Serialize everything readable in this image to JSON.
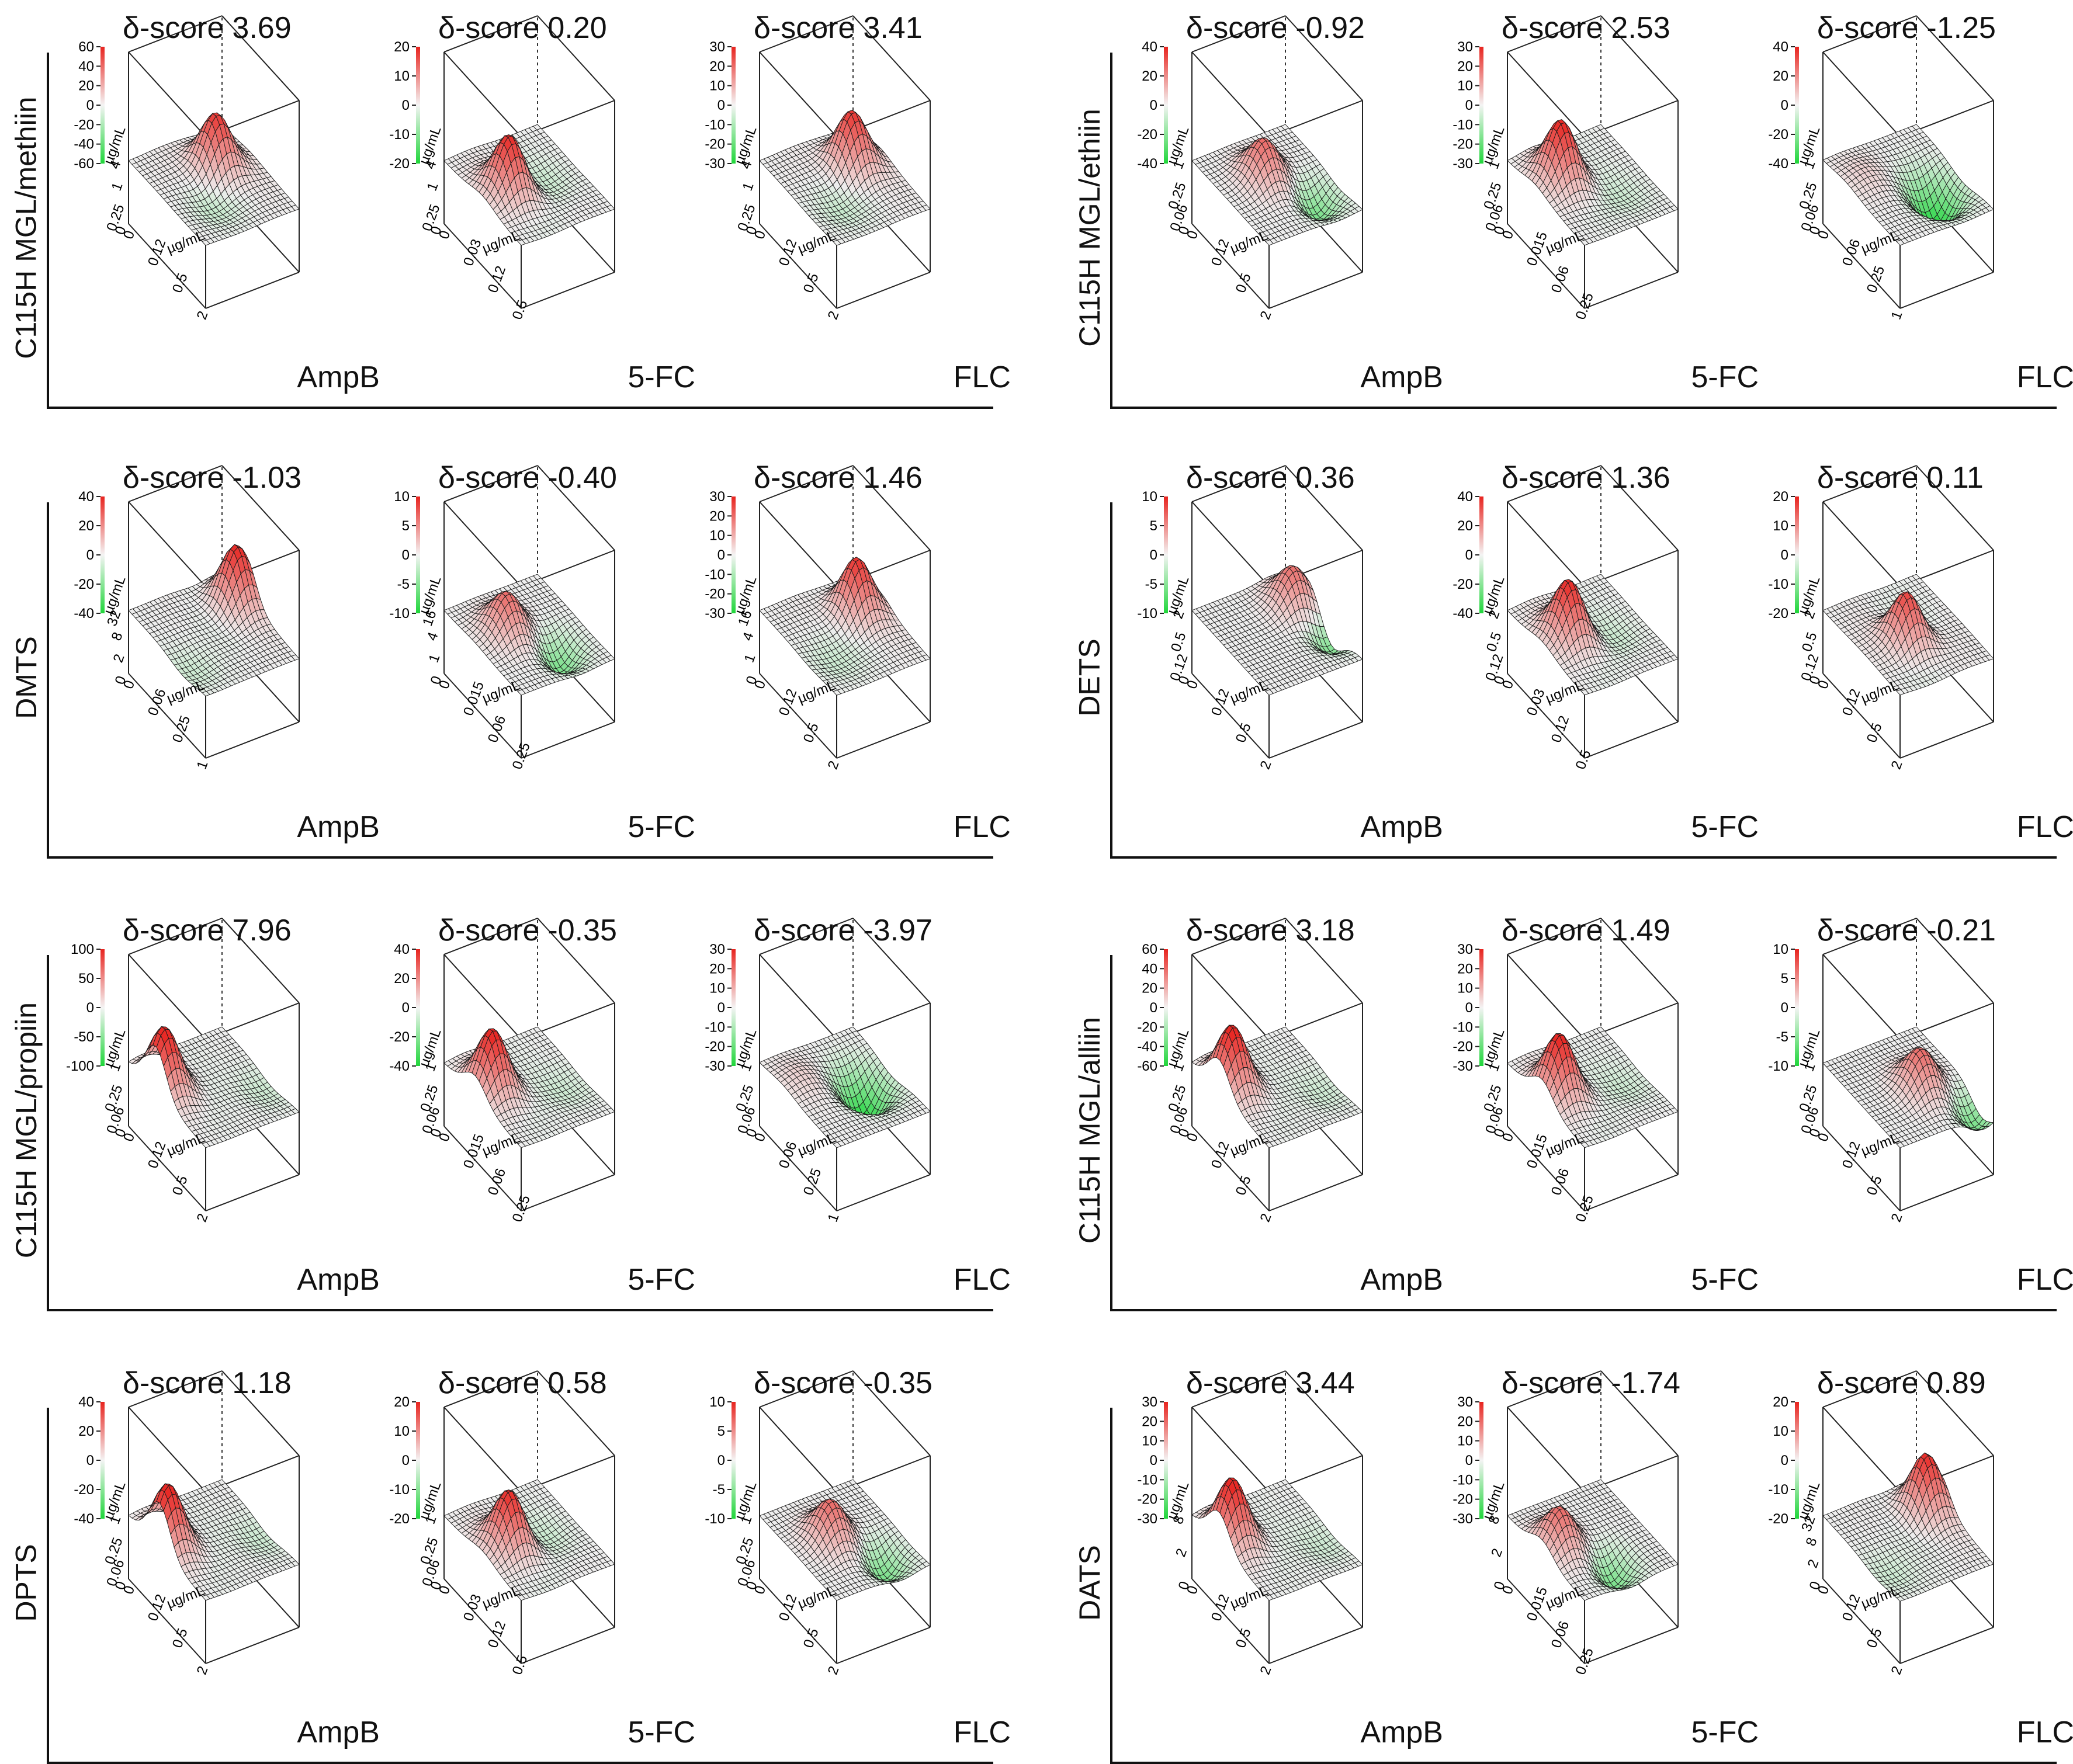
{
  "score_label": "δ-score",
  "axis_unit": "µg/mL",
  "chart_data": [
    {
      "type": "surface",
      "row_label": "C115H MGL/methiin",
      "panels": [
        {
          "delta_score": "3.69",
          "drug": "AmpB",
          "z_ticks": [
            "60",
            "40",
            "20",
            "0",
            "-20",
            "-40",
            "-60"
          ],
          "x_ticks": [
            "0",
            "0.12",
            "0.5",
            "2"
          ],
          "y_ticks": [
            "0",
            "0.25",
            "1",
            "4"
          ],
          "peak": "positive",
          "peak_pos": [
            0.65,
            0.35
          ]
        },
        {
          "delta_score": "0.20",
          "drug": "5-FC",
          "z_ticks": [
            "20",
            "10",
            "0",
            "-10",
            "-20"
          ],
          "x_ticks": [
            "0",
            "0.03",
            "0.12",
            "0.5"
          ],
          "y_ticks": [
            "0",
            "0.25",
            "1",
            "4"
          ],
          "peak": "positive",
          "peak_pos": [
            0.3,
            0.5
          ]
        },
        {
          "delta_score": "3.41",
          "drug": "FLC",
          "z_ticks": [
            "30",
            "20",
            "10",
            "0",
            "-10",
            "-20",
            "-30"
          ],
          "x_ticks": [
            "0",
            "0.12",
            "0.5",
            "2"
          ],
          "y_ticks": [
            "0",
            "0.25",
            "1",
            "4"
          ],
          "peak": "positive",
          "peak_pos": [
            0.7,
            0.35
          ]
        }
      ]
    },
    {
      "type": "surface",
      "row_label": "C115H MGL/ethiin",
      "panels": [
        {
          "delta_score": "-0.92",
          "drug": "AmpB",
          "z_ticks": [
            "40",
            "20",
            "0",
            "-20",
            "-40"
          ],
          "x_ticks": [
            "0",
            "0.12",
            "0.5",
            "2"
          ],
          "y_ticks": [
            "0",
            "0.06",
            "0.25",
            "1"
          ],
          "peak": "mixed",
          "peak_pos": [
            0.45,
            0.4
          ]
        },
        {
          "delta_score": "2.53",
          "drug": "5-FC",
          "z_ticks": [
            "30",
            "20",
            "10",
            "0",
            "-10",
            "-20",
            "-30"
          ],
          "x_ticks": [
            "0",
            "0.015",
            "0.06",
            "0.25"
          ],
          "y_ticks": [
            "0",
            "0.06",
            "0.25",
            "1"
          ],
          "peak": "positive",
          "peak_pos": [
            0.3,
            0.35
          ]
        },
        {
          "delta_score": "-1.25",
          "drug": "FLC",
          "z_ticks": [
            "40",
            "20",
            "0",
            "-20",
            "-40"
          ],
          "x_ticks": [
            "0",
            "0.06",
            "0.25",
            "1"
          ],
          "y_ticks": [
            "0",
            "0.06",
            "0.25",
            "1"
          ],
          "peak": "negative",
          "peak_pos": [
            0.7,
            0.6
          ]
        }
      ]
    },
    {
      "type": "surface",
      "row_label": "DMTS",
      "panels": [
        {
          "delta_score": "-1.03",
          "drug": "AmpB",
          "z_ticks": [
            "40",
            "20",
            "0",
            "-20",
            "-40"
          ],
          "x_ticks": [
            "0",
            "0.06",
            "0.25",
            "1"
          ],
          "y_ticks": [
            "0",
            "2",
            "8",
            "32"
          ],
          "peak": "positive",
          "peak_pos": [
            0.9,
            0.3
          ]
        },
        {
          "delta_score": "-0.40",
          "drug": "5-FC",
          "z_ticks": [
            "10",
            "5",
            "0",
            "-5",
            "-10"
          ],
          "x_ticks": [
            "0",
            "0.015",
            "0.06",
            "0.25"
          ],
          "y_ticks": [
            "0",
            "1",
            "4",
            "16"
          ],
          "peak": "mixed",
          "peak_pos": [
            0.35,
            0.4
          ]
        },
        {
          "delta_score": "1.46",
          "drug": "FLC",
          "z_ticks": [
            "30",
            "20",
            "10",
            "0",
            "-10",
            "-20",
            "-30"
          ],
          "x_ticks": [
            "0",
            "0.12",
            "0.5",
            "2"
          ],
          "y_ticks": [
            "0",
            "1",
            "4",
            "16"
          ],
          "peak": "positive",
          "peak_pos": [
            0.75,
            0.35
          ]
        }
      ]
    },
    {
      "type": "surface",
      "row_label": "DETS",
      "panels": [
        {
          "delta_score": "0.36",
          "drug": "AmpB",
          "z_ticks": [
            "10",
            "5",
            "0",
            "-5",
            "-10"
          ],
          "x_ticks": [
            "0",
            "0.12",
            "0.5",
            "2"
          ],
          "y_ticks": [
            "0",
            "0.12",
            "0.5",
            "2"
          ],
          "peak": "mixed",
          "peak_pos": [
            0.85,
            0.3
          ]
        },
        {
          "delta_score": "1.36",
          "drug": "5-FC",
          "z_ticks": [
            "40",
            "20",
            "0",
            "-20",
            "-40"
          ],
          "x_ticks": [
            "0",
            "0.03",
            "0.12",
            "0.5"
          ],
          "y_ticks": [
            "0",
            "0.12",
            "0.5",
            "2"
          ],
          "peak": "positive",
          "peak_pos": [
            0.3,
            0.45
          ]
        },
        {
          "delta_score": "0.11",
          "drug": "FLC",
          "z_ticks": [
            "20",
            "10",
            "0",
            "-10",
            "-20"
          ],
          "x_ticks": [
            "0",
            "0.12",
            "0.5",
            "2"
          ],
          "y_ticks": [
            "0",
            "0.12",
            "0.5",
            "2"
          ],
          "peak": "positive",
          "peak_pos": [
            0.45,
            0.55
          ]
        }
      ]
    },
    {
      "type": "surface",
      "row_label": "C115H MGL/propiin",
      "panels": [
        {
          "delta_score": "7.96",
          "drug": "AmpB",
          "z_ticks": [
            "100",
            "50",
            "0",
            "-50",
            "-100"
          ],
          "x_ticks": [
            "0",
            "0.12",
            "0.5",
            "2"
          ],
          "y_ticks": [
            "0",
            "0.06",
            "0.25",
            "1"
          ],
          "peak": "positive",
          "peak_pos": [
            0.1,
            0.35
          ]
        },
        {
          "delta_score": "-0.35",
          "drug": "5-FC",
          "z_ticks": [
            "40",
            "20",
            "0",
            "-20",
            "-40"
          ],
          "x_ticks": [
            "0",
            "0.015",
            "0.06",
            "0.25"
          ],
          "y_ticks": [
            "0",
            "0.06",
            "0.25",
            "1"
          ],
          "peak": "positive",
          "peak_pos": [
            0.2,
            0.4
          ]
        },
        {
          "delta_score": "-3.97",
          "drug": "FLC",
          "z_ticks": [
            "30",
            "20",
            "10",
            "0",
            "-10",
            "-20",
            "-30"
          ],
          "x_ticks": [
            "0",
            "0.06",
            "0.25",
            "1"
          ],
          "y_ticks": [
            "0",
            "0.06",
            "0.25",
            "1"
          ],
          "peak": "negative",
          "peak_pos": [
            0.7,
            0.5
          ]
        }
      ]
    },
    {
      "type": "surface",
      "row_label": "C115H MGL/alliin",
      "panels": [
        {
          "delta_score": "3.18",
          "drug": "AmpB",
          "z_ticks": [
            "60",
            "40",
            "20",
            "0",
            "-20",
            "-40",
            "-60"
          ],
          "x_ticks": [
            "0",
            "0.12",
            "0.5",
            "2"
          ],
          "y_ticks": [
            "0",
            "0.06",
            "0.25",
            "1"
          ],
          "peak": "positive",
          "peak_pos": [
            0.15,
            0.35
          ]
        },
        {
          "delta_score": "1.49",
          "drug": "5-FC",
          "z_ticks": [
            "30",
            "20",
            "10",
            "0",
            "-10",
            "-20",
            "-30"
          ],
          "x_ticks": [
            "0",
            "0.015",
            "0.06",
            "0.25"
          ],
          "y_ticks": [
            "0",
            "0.06",
            "0.25",
            "1"
          ],
          "peak": "positive",
          "peak_pos": [
            0.2,
            0.45
          ]
        },
        {
          "delta_score": "-0.21",
          "drug": "FLC",
          "z_ticks": [
            "10",
            "5",
            "0",
            "-5",
            "-10"
          ],
          "x_ticks": [
            "0",
            "0.12",
            "0.5",
            "2"
          ],
          "y_ticks": [
            "0",
            "0.06",
            "0.25",
            "1"
          ],
          "peak": "mixed",
          "peak_pos": [
            0.6,
            0.55
          ]
        }
      ]
    },
    {
      "type": "surface",
      "row_label": "DPTS",
      "panels": [
        {
          "delta_score": "1.18",
          "drug": "AmpB",
          "z_ticks": [
            "40",
            "20",
            "0",
            "-20",
            "-40"
          ],
          "x_ticks": [
            "0",
            "0.12",
            "0.5",
            "2"
          ],
          "y_ticks": [
            "0",
            "0.06",
            "0.25",
            "1"
          ],
          "peak": "positive",
          "peak_pos": [
            0.1,
            0.4
          ]
        },
        {
          "delta_score": "0.58",
          "drug": "5-FC",
          "z_ticks": [
            "20",
            "10",
            "0",
            "-10",
            "-20"
          ],
          "x_ticks": [
            "0",
            "0.03",
            "0.12",
            "0.5"
          ],
          "y_ticks": [
            "0",
            "0.06",
            "0.25",
            "1"
          ],
          "peak": "positive",
          "peak_pos": [
            0.3,
            0.5
          ]
        },
        {
          "delta_score": "-0.35",
          "drug": "FLC",
          "z_ticks": [
            "10",
            "5",
            "0",
            "-5",
            "-10"
          ],
          "x_ticks": [
            "0",
            "0.12",
            "0.5",
            "2"
          ],
          "y_ticks": [
            "0",
            "0.06",
            "0.25",
            "1"
          ],
          "peak": "mixed",
          "peak_pos": [
            0.4,
            0.45
          ]
        }
      ]
    },
    {
      "type": "surface",
      "row_label": "DATS",
      "panels": [
        {
          "delta_score": "3.44",
          "drug": "AmpB",
          "z_ticks": [
            "30",
            "20",
            "10",
            "0",
            "-10",
            "-20",
            "-30"
          ],
          "x_ticks": [
            "0",
            "0.12",
            "0.5",
            "2"
          ],
          "y_ticks": [
            "0",
            "2",
            "8"
          ],
          "peak": "positive",
          "peak_pos": [
            0.15,
            0.35
          ]
        },
        {
          "delta_score": "-1.74",
          "drug": "5-FC",
          "z_ticks": [
            "30",
            "20",
            "10",
            "0",
            "-10",
            "-20",
            "-30"
          ],
          "x_ticks": [
            "0",
            "0.015",
            "0.06",
            "0.25"
          ],
          "y_ticks": [
            "0",
            "2",
            "8"
          ],
          "peak": "mixed",
          "peak_pos": [
            0.2,
            0.45
          ]
        },
        {
          "delta_score": "0.89",
          "drug": "FLC",
          "z_ticks": [
            "20",
            "10",
            "0",
            "-10",
            "-20"
          ],
          "x_ticks": [
            "0",
            "0.12",
            "0.5",
            "2"
          ],
          "y_ticks": [
            "0",
            "2",
            "8",
            "32"
          ],
          "peak": "positive",
          "peak_pos": [
            0.85,
            0.3
          ]
        }
      ]
    }
  ]
}
